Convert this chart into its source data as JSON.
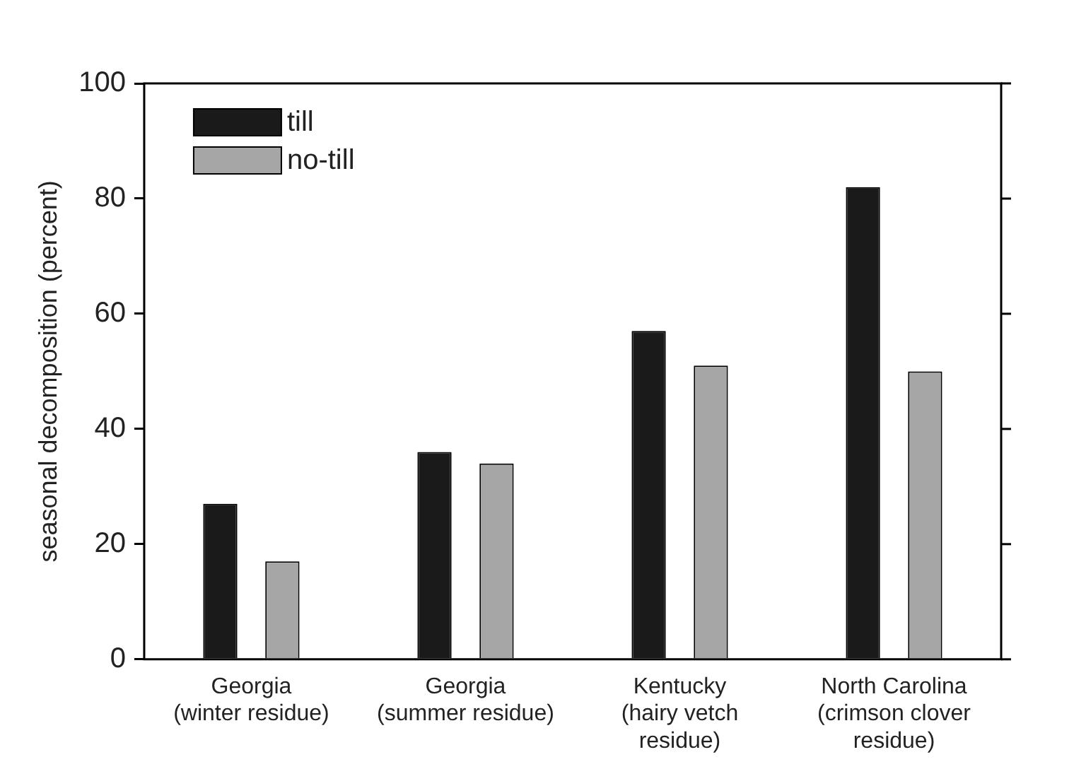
{
  "chart_data": {
    "type": "bar",
    "ylabel": "seasonal decomposition (percent)",
    "categories": [
      "Georgia\n(winter residue)",
      "Georgia\n(summer residue)",
      "Kentucky\n(hairy vetch\nresidue)",
      "North Carolina\n(crimson clover\nresidue)"
    ],
    "series": [
      {
        "name": "till",
        "color": "#1a1a1a",
        "values": [
          27,
          36,
          57,
          82
        ]
      },
      {
        "name": "no-till",
        "color": "#a6a6a6",
        "values": [
          17,
          34,
          51,
          50
        ]
      }
    ],
    "ylim": [
      0,
      100
    ],
    "yticks": [
      0,
      20,
      40,
      60,
      80,
      100
    ],
    "grid": false,
    "legend": "top left"
  }
}
